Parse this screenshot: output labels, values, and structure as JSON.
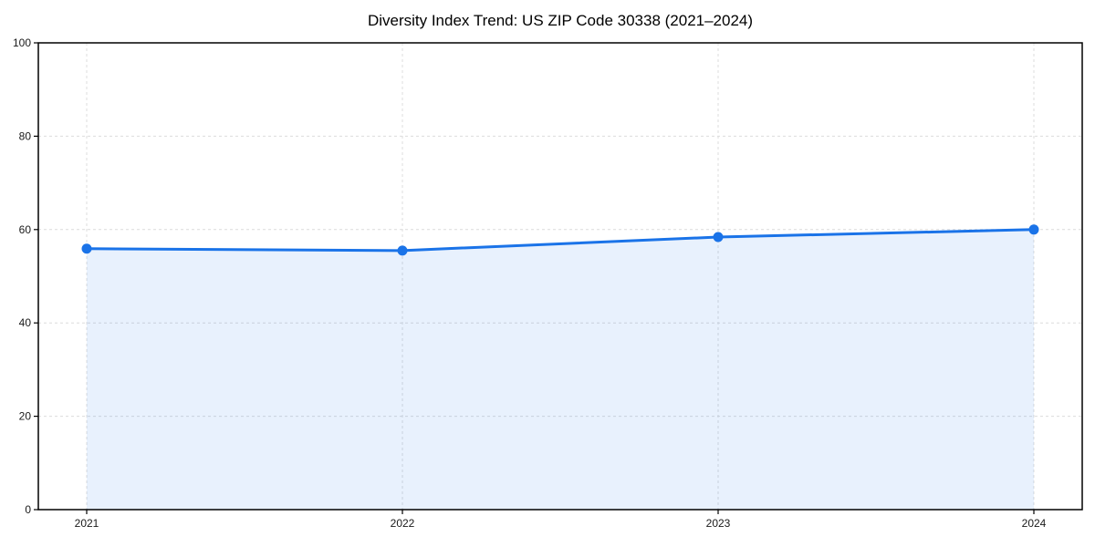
{
  "page": {
    "background": "#ffffff"
  },
  "chart_data": {
    "type": "area",
    "title": "Diversity Index Trend: US ZIP Code 30338 (2021–2024)",
    "categories": [
      "2021",
      "2022",
      "2023",
      "2024"
    ],
    "series": [
      {
        "name": "Diversity Index",
        "values": [
          55.9,
          55.5,
          58.4,
          60.0
        ]
      }
    ],
    "xlabel": "",
    "ylabel": "",
    "ylim": [
      0,
      100
    ],
    "yticks": [
      0,
      20,
      40,
      60,
      80,
      100
    ],
    "grid": true,
    "grid_style": "dashed",
    "legend": false,
    "marker": "circle",
    "colors": {
      "line": "#1a73e8",
      "marker": "#1a73e8",
      "fill": "rgba(26,115,232,0.10)",
      "gridline": "#dcdcdc",
      "spine": "#000000",
      "tick": "#000000",
      "tick_label": "#1a1a1a",
      "title": "#000000"
    }
  }
}
